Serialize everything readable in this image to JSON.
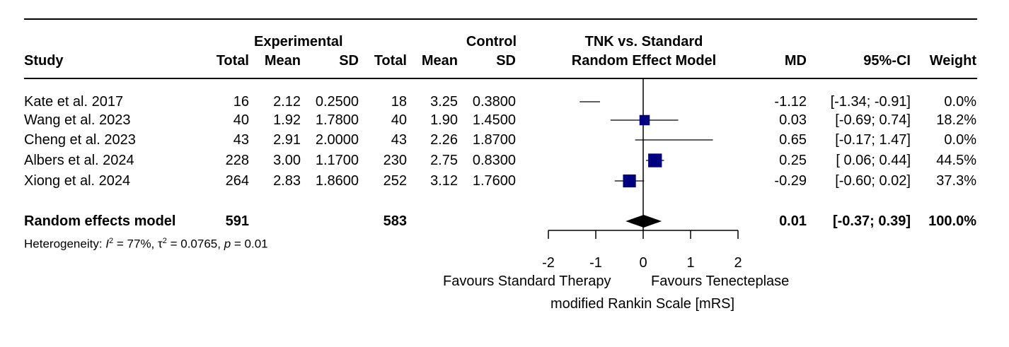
{
  "chart_data": {
    "type": "forest",
    "title": "TNK vs. Standard",
    "subtitle": "Random Effect Model",
    "header": {
      "study": "Study",
      "experimental": "Experimental",
      "control": "Control",
      "total": "Total",
      "mean": "Mean",
      "sd": "SD",
      "md": "MD",
      "ci": "95%-CI",
      "weight": "Weight"
    },
    "studies": [
      {
        "name": "Kate et al. 2017",
        "e_total": "16",
        "e_mean": "2.12",
        "e_sd": "0.2500",
        "c_total": "18",
        "c_mean": "3.25",
        "c_sd": "0.3800",
        "md_text": "-1.12",
        "ci_text": "[-1.34; -0.91]",
        "weight_text": "0.0%",
        "md": -1.12,
        "lower": -1.34,
        "upper": -0.91,
        "weight": 0.0
      },
      {
        "name": "Wang et al. 2023",
        "e_total": "40",
        "e_mean": "1.92",
        "e_sd": "1.7800",
        "c_total": "40",
        "c_mean": "1.90",
        "c_sd": "1.4500",
        "md_text": "0.03",
        "ci_text": "[-0.69; 0.74]",
        "weight_text": "18.2%",
        "md": 0.03,
        "lower": -0.69,
        "upper": 0.74,
        "weight": 18.2
      },
      {
        "name": "Cheng et al. 2023",
        "e_total": "43",
        "e_mean": "2.91",
        "e_sd": "2.0000",
        "c_total": "43",
        "c_mean": "2.26",
        "c_sd": "1.8700",
        "md_text": "0.65",
        "ci_text": "[-0.17; 1.47]",
        "weight_text": "0.0%",
        "md": 0.65,
        "lower": -0.17,
        "upper": 1.47,
        "weight": 0.0
      },
      {
        "name": "Albers et al. 2024",
        "e_total": "228",
        "e_mean": "3.00",
        "e_sd": "1.1700",
        "c_total": "230",
        "c_mean": "2.75",
        "c_sd": "0.8300",
        "md_text": "0.25",
        "ci_text": "[ 0.06; 0.44]",
        "weight_text": "44.5%",
        "md": 0.25,
        "lower": 0.06,
        "upper": 0.44,
        "weight": 44.5
      },
      {
        "name": "Xiong et al. 2024",
        "e_total": "264",
        "e_mean": "2.83",
        "e_sd": "1.8600",
        "c_total": "252",
        "c_mean": "3.12",
        "c_sd": "1.7600",
        "md_text": "-0.29",
        "ci_text": "[-0.60; 0.02]",
        "weight_text": "37.3%",
        "md": -0.29,
        "lower": -0.6,
        "upper": 0.02,
        "weight": 37.3
      }
    ],
    "pooled": {
      "name": "Random effects model",
      "e_total": "591",
      "c_total": "583",
      "md_text": "0.01",
      "ci_text": "[-0.37; 0.39]",
      "weight_text": "100.0%",
      "md": 0.01,
      "lower": -0.37,
      "upper": 0.39
    },
    "heterogeneity": {
      "label": "Heterogeneity: ",
      "i2_symbol": "I",
      "i2_value": " = 77%, ",
      "tau2_symbol": "τ",
      "tau2_value": " = 0.0765, ",
      "p_symbol": "p",
      "p_value": " = 0.01"
    },
    "x_axis": {
      "ticks": [
        -2,
        -1,
        0,
        1,
        2
      ],
      "tick_labels": [
        "-2",
        "-1",
        "0",
        "1",
        "2"
      ],
      "xlim": [
        -2,
        2
      ],
      "label_left": "Favours Standard Therapy",
      "label_right": "Favours Tenecteplase",
      "xlabel": "modified Rankin Scale [mRS]"
    },
    "colors": {
      "square": "#000080",
      "line": "#000000",
      "diamond": "#000000"
    }
  }
}
